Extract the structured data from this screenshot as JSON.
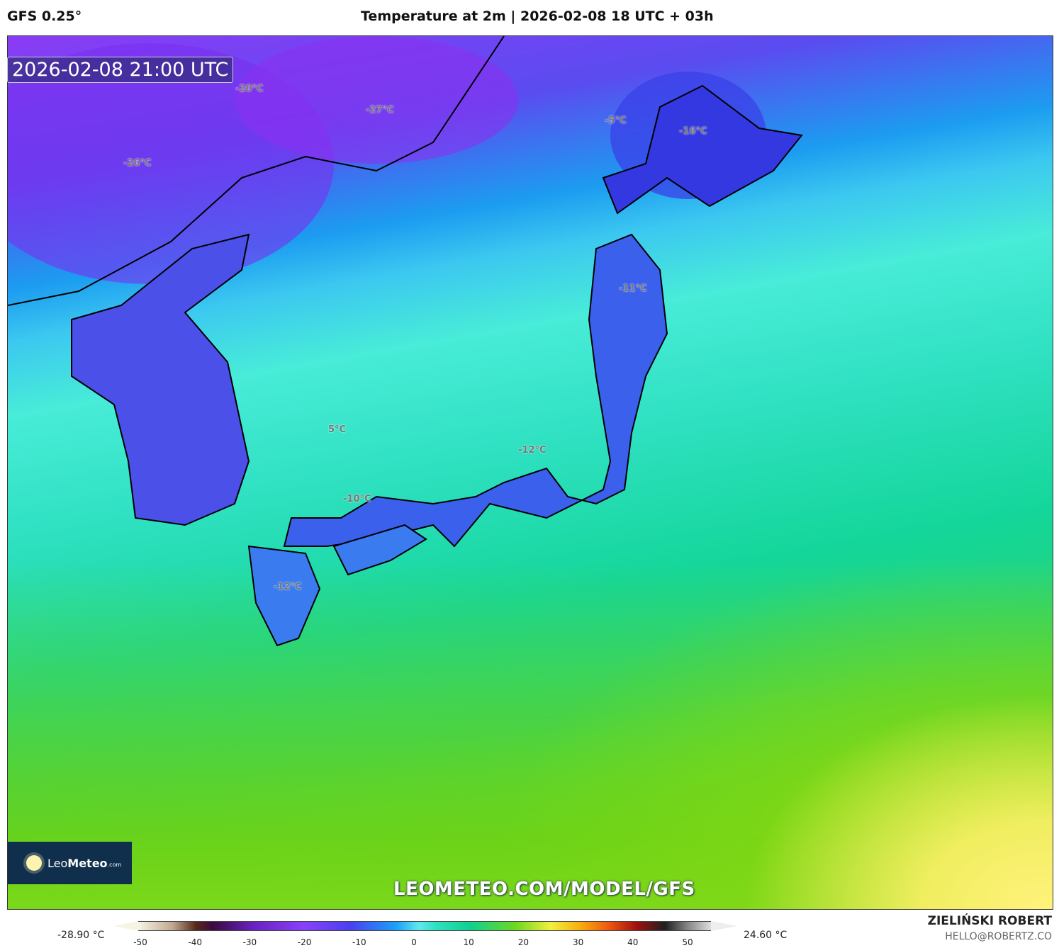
{
  "header": {
    "model": "GFS 0.25°",
    "title": "Temperature at 2m | 2026-02-08 18 UTC + 03h"
  },
  "map": {
    "valid_time": "2026-02-08 21:00 UTC",
    "labels": [
      "-20°C",
      "-27°C",
      "-26°C",
      "-5°C",
      "-16°C",
      "-11°C",
      "5°C",
      "-12°C",
      "-10°C",
      "-12°C"
    ],
    "watermark": "LEOMETEO.COM/MODEL/GFS",
    "logo": {
      "leo": "Leo",
      "meteo": "Meteo",
      "com": ".com"
    }
  },
  "legend": {
    "min": "-28.90 °C",
    "max": "24.60 °C",
    "ticks": [
      "-50",
      "-40",
      "-30",
      "-20",
      "-10",
      "0",
      "10",
      "20",
      "30",
      "40",
      "50"
    ],
    "units": "°C"
  },
  "credits": {
    "author": "ZIELIŃSKI ROBERT",
    "email": "HELLO@ROBERTZ.CO"
  }
}
